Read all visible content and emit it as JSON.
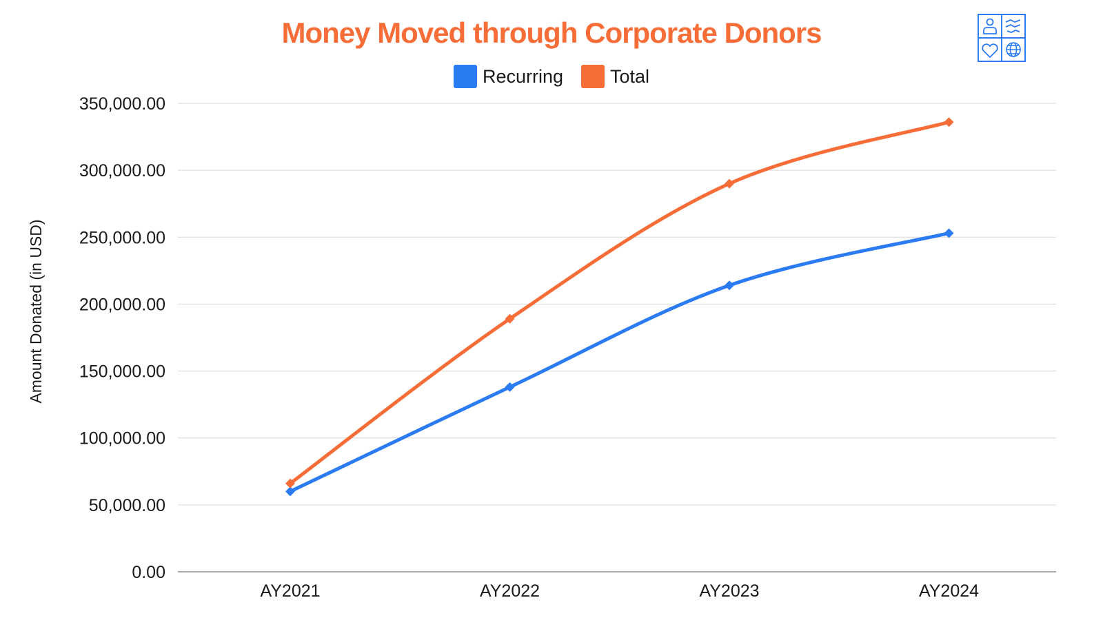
{
  "colors": {
    "recurring": "#2b7bf3",
    "total": "#f76d38",
    "grid": "#d9d9d9",
    "axis": "#8a8a8a",
    "logo": "#2b7bf3"
  },
  "logo": {
    "icons": [
      "person-icon",
      "handshake-icon",
      "heart-icon",
      "globe-icon"
    ]
  },
  "chart_data": {
    "type": "line",
    "title": "Money Moved through Corporate Donors",
    "xlabel": "",
    "ylabel": "Amount Donated (in USD)",
    "categories": [
      "AY2021",
      "AY2022",
      "AY2023",
      "AY2024"
    ],
    "ylim": [
      0,
      350000
    ],
    "yticks": [
      0,
      50000,
      100000,
      150000,
      200000,
      250000,
      300000,
      350000
    ],
    "ytick_labels": [
      "0.00",
      "50,000.00",
      "100,000.00",
      "150,000.00",
      "200,000.00",
      "250,000.00",
      "300,000.00",
      "350,000.00"
    ],
    "grid": true,
    "legend_position": "top-center",
    "series": [
      {
        "name": "Recurring",
        "color": "#2b7bf3",
        "values": [
          60000,
          138000,
          214000,
          253000
        ]
      },
      {
        "name": "Total",
        "color": "#f76d38",
        "values": [
          66000,
          189000,
          290000,
          336000
        ]
      }
    ]
  }
}
